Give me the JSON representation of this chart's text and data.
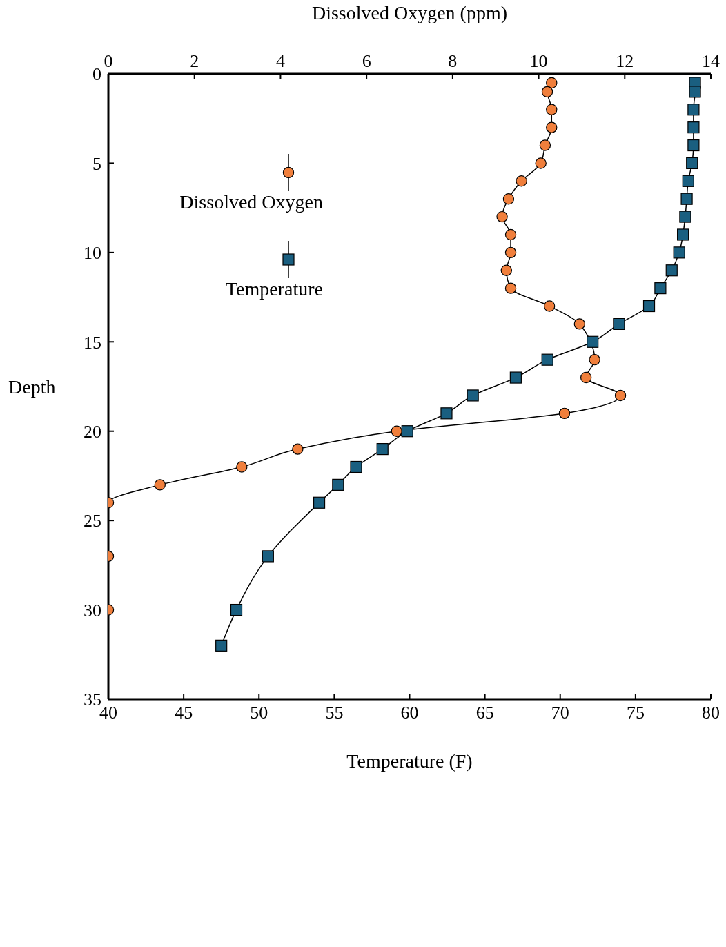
{
  "chart_data": {
    "type": "line",
    "orientation": "horizontal",
    "xlabel": "Temperature (F)",
    "x2label": "Dissolved Oxygen (ppm)",
    "ylabel": "Depth",
    "xlim": [
      40,
      80
    ],
    "xticks": [
      40,
      45,
      50,
      55,
      60,
      65,
      70,
      75,
      80
    ],
    "x2lim": [
      0,
      14
    ],
    "x2ticks": [
      0,
      2,
      4,
      6,
      8,
      10,
      12,
      14
    ],
    "ylim": [
      35,
      0
    ],
    "yticks": [
      0,
      5,
      10,
      15,
      20,
      25,
      30,
      35
    ],
    "legend": "top left",
    "line_style": "solid",
    "series": [
      {
        "name": "Dissolved Oxygen",
        "color": "#f07f3c",
        "marker": "circle",
        "axis": "x2",
        "x": [
          0.5,
          1,
          2,
          3,
          4,
          5,
          6,
          7,
          8,
          9,
          10,
          11,
          12,
          13,
          14,
          15,
          16,
          17,
          18,
          19,
          20,
          21,
          22,
          23,
          24,
          27,
          30
        ],
        "values": [
          10.3,
          10.2,
          10.3,
          10.3,
          10.15,
          10.05,
          9.6,
          9.3,
          9.15,
          9.35,
          9.35,
          9.25,
          9.35,
          10.25,
          10.95,
          null,
          11.3,
          11.1,
          11.9,
          10.6,
          6.7,
          4.4,
          3.1,
          1.2,
          0,
          0,
          0
        ]
      },
      {
        "name": "Temperature",
        "color": "#1a5f80",
        "marker": "square",
        "x": [
          0.5,
          1,
          2,
          3,
          4,
          5,
          6,
          7,
          8,
          9,
          10,
          11,
          12,
          13,
          14,
          15,
          16,
          17,
          18,
          19,
          20,
          21,
          22,
          23,
          24,
          27,
          30,
          32
        ],
        "values": [
          78.95,
          78.95,
          78.85,
          78.85,
          78.85,
          78.75,
          78.5,
          78.4,
          78.3,
          78.15,
          77.9,
          77.4,
          76.65,
          75.9,
          73.9,
          72.15,
          69.15,
          67.05,
          64.2,
          62.45,
          59.85,
          58.2,
          56.45,
          55.25,
          54,
          50.6,
          48.5,
          47.5
        ]
      }
    ]
  }
}
